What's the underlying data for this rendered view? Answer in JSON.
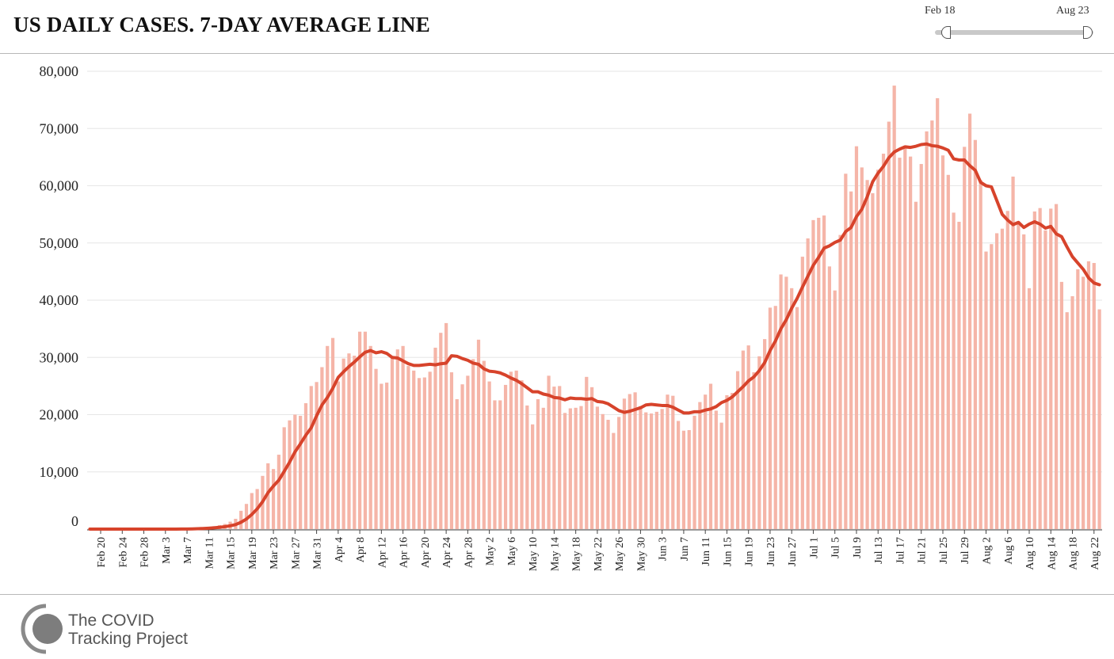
{
  "header": {
    "title": "US DAILY CASES. 7-DAY AVERAGE LINE",
    "range_start": "Feb 18",
    "range_end": "Aug 23"
  },
  "logo": {
    "line1": "The COVID",
    "line2": "Tracking Project"
  },
  "colors": {
    "bar": "#f5b5a8",
    "line": "#d7432b",
    "grid": "#e6e6e6"
  },
  "chart_data": {
    "type": "bar",
    "title": "US DAILY CASES. 7-DAY AVERAGE LINE",
    "start_date": "2020-02-18",
    "ylim": [
      0,
      80000
    ],
    "yticks": [
      0,
      10000,
      20000,
      30000,
      40000,
      50000,
      60000,
      70000,
      80000
    ],
    "ytick_labels": [
      "0",
      "10,000",
      "20,000",
      "30,000",
      "40,000",
      "50,000",
      "60,000",
      "70,000",
      "80,000"
    ],
    "xtick_labels": [
      "Feb 20",
      "Feb 24",
      "Feb 28",
      "Mar 3",
      "Mar 7",
      "Mar 11",
      "Mar 15",
      "Mar 19",
      "Mar 23",
      "Mar 27",
      "Mar 31",
      "Apr 4",
      "Apr 8",
      "Apr 12",
      "Apr 16",
      "Apr 20",
      "Apr 24",
      "Apr 28",
      "May 2",
      "May 6",
      "May 10",
      "May 14",
      "May 18",
      "May 22",
      "May 26",
      "May 30",
      "Jun 3",
      "Jun 7",
      "Jun 11",
      "Jun 15",
      "Jun 19",
      "Jun 23",
      "Jun 27",
      "Jul 1",
      "Jul 5",
      "Jul 9",
      "Jul 13",
      "Jul 17",
      "Jul 21",
      "Jul 25",
      "Jul 29",
      "Aug 2",
      "Aug 6",
      "Aug 10",
      "Aug 14",
      "Aug 18",
      "Aug 22"
    ],
    "grid": true,
    "series": [
      {
        "type": "bar",
        "values": [
          0,
          0,
          0,
          0,
          0,
          0,
          0,
          0,
          0,
          0,
          0,
          0,
          0,
          0,
          5,
          10,
          20,
          40,
          80,
          120,
          180,
          250,
          350,
          500,
          700,
          900,
          1300,
          1800,
          3200,
          4400,
          6300,
          7000,
          9300,
          11500,
          10500,
          13000,
          17800,
          19000,
          20000,
          19800,
          22000,
          25000,
          25700,
          28300,
          32000,
          33400,
          25800,
          29800,
          30700,
          30300,
          34500,
          34500,
          32000,
          28000,
          25400,
          25600,
          30000,
          31400,
          32000,
          28500,
          27700,
          26400,
          26500,
          27500,
          31700,
          34300,
          36000,
          27400,
          22700,
          25300,
          26800,
          29700,
          33100,
          29400,
          25800,
          22500,
          22500,
          25200,
          27500,
          27700,
          26000,
          21600,
          18300,
          22700,
          21200,
          26800,
          24900,
          25000,
          20300,
          21100,
          21200,
          21500,
          26600,
          24800,
          21400,
          20100,
          19100,
          16800,
          19600,
          22800,
          23600,
          23900,
          21500,
          20400,
          20200,
          20500,
          21000,
          23500,
          23300,
          18900,
          17200,
          17300,
          19800,
          22200,
          23500,
          25400,
          20700,
          18600,
          23400,
          23800,
          27600,
          31200,
          32100,
          27400,
          30200,
          33200,
          38700,
          39000,
          44500,
          44100,
          42100,
          38800,
          47600,
          50800,
          54000,
          54400,
          54800,
          45900,
          41700,
          51400,
          62100,
          59000,
          66900,
          63200,
          61000,
          58700,
          62800,
          65600,
          71200,
          77500,
          64900,
          67000,
          65100,
          57200,
          63800,
          69500,
          71400,
          75300,
          65300,
          61900,
          55300,
          53700,
          66800,
          72600,
          68000,
          61000,
          48500,
          49800,
          51700,
          52500,
          55600,
          61600,
          53300,
          51500,
          42100,
          55500,
          56100,
          52200,
          56000,
          56800,
          43200,
          37900,
          40700,
          45400,
          44100,
          46800,
          46500,
          38400
        ]
      },
      {
        "type": "line",
        "values": [
          0,
          0,
          0,
          0,
          0,
          0,
          0,
          0,
          0,
          0,
          0,
          0,
          0,
          0,
          1,
          3,
          7,
          13,
          25,
          43,
          70,
          107,
          156,
          224,
          313,
          424,
          583,
          783,
          1196,
          1760,
          2560,
          3540,
          4790,
          6370,
          7530,
          8540,
          10100,
          11700,
          13500,
          14900,
          16400,
          17700,
          19800,
          21700,
          23000,
          24600,
          26500,
          27500,
          28400,
          29200,
          30100,
          30900,
          31200,
          30800,
          31000,
          30700,
          30000,
          29900,
          29400,
          28900,
          28600,
          28600,
          28700,
          28800,
          28700,
          28900,
          29000,
          30300,
          30200,
          29800,
          29500,
          29000,
          28800,
          28000,
          27600,
          27500,
          27300,
          26900,
          26400,
          26000,
          25400,
          24700,
          24000,
          24000,
          23600,
          23400,
          23000,
          22900,
          22600,
          22900,
          22800,
          22800,
          22700,
          22800,
          22300,
          22200,
          21900,
          21300,
          20700,
          20400,
          20600,
          20900,
          21200,
          21700,
          21800,
          21700,
          21600,
          21600,
          21300,
          20800,
          20300,
          20300,
          20500,
          20500,
          20800,
          21000,
          21400,
          22100,
          22500,
          23100,
          24000,
          24900,
          25900,
          26600,
          27700,
          29100,
          31200,
          32900,
          35000,
          36600,
          38600,
          40300,
          42300,
          44200,
          46100,
          47500,
          49100,
          49500,
          50100,
          50500,
          52000,
          52700,
          54600,
          55900,
          58100,
          60700,
          62200,
          63400,
          64900,
          65900,
          66400,
          66800,
          66700,
          66900,
          67200,
          67300,
          67000,
          66900,
          66600,
          66200,
          64700,
          64500,
          64500,
          63500,
          62700,
          60600,
          60000,
          59800,
          57400,
          55000,
          54000,
          53200,
          53600,
          52700,
          53300,
          53700,
          53300,
          52600,
          52900,
          51600,
          51100,
          49300,
          47600,
          46500,
          45400,
          43900,
          43000,
          42700
        ]
      }
    ]
  }
}
